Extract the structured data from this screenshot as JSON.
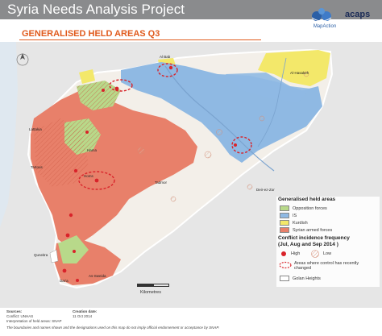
{
  "header": {
    "title": "Syria Needs Analysis Project"
  },
  "subtitle": "GENERALISED HELD AREAS Q3",
  "logos": {
    "mapaction": "MapAction",
    "acaps": "acaps"
  },
  "legend": {
    "held_title": "Generalised held areas",
    "held_items": [
      {
        "label": "Opposition forces",
        "color": "#b8d98a"
      },
      {
        "label": "IS",
        "color": "#8fb9e3"
      },
      {
        "label": "Kurdish",
        "color": "#f3e86a"
      },
      {
        "label": "Syrian armed forces",
        "color": "#e8806a"
      }
    ],
    "conflict_title": "Conflict incidence frequency",
    "conflict_sub": "(Jul, Aug and Sep 2014 )",
    "high_label": "High",
    "low_label": "Low",
    "changed_label_1": "Areas where control has recently",
    "changed_label_2": "changed",
    "golan_label": "Golan Heights"
  },
  "scale": {
    "label": "Kilometres"
  },
  "places": {
    "al_bab": "Al Bab",
    "al_hasakeh": "Al-Hasakeh",
    "latakia": "Lattakia",
    "tartous": "Tartous",
    "hama": "Hama",
    "homs": "Homs",
    "palmyra": "Tadmor",
    "deir": "Deir-ez-Zor",
    "quneitra": "Quneitra",
    "dara": "Dar'a",
    "as_sweida": "As-Sweida"
  },
  "footer": {
    "sources_h": "Sources:",
    "sources_1": "Conflict: UNHAS",
    "sources_2": "Interpretation of held areas: SNAP",
    "created_h": "Creation date:",
    "created_v": "11 Oct 2014",
    "disclaimer": "The boundaries and names shown and the designations used on this map do not imply official endorsement or acceptance by SNAP."
  },
  "colors": {
    "header_bg": "#8a8b8d",
    "accent": "#e05a1c",
    "opposition": "#b8d98a",
    "is": "#8fb9e3",
    "kurdish": "#f3e86a",
    "government": "#e8806a",
    "neighbour": "#e6e6e6",
    "sea": "#dfe8f0"
  }
}
